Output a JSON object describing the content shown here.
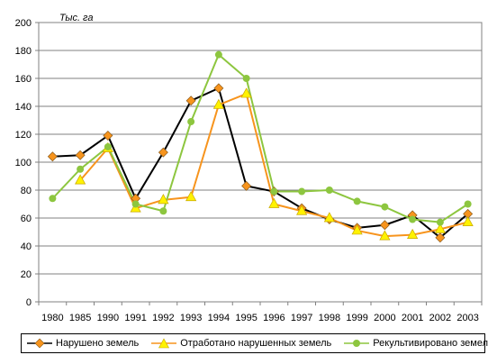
{
  "chart_data": {
    "type": "line",
    "unit_label": "Тыс. га",
    "categories": [
      "1980",
      "1985",
      "1990",
      "1991",
      "1992",
      "1993",
      "1994",
      "1995",
      "1996",
      "1997",
      "1998",
      "1999",
      "2000",
      "2001",
      "2002",
      "2003"
    ],
    "ylim": [
      0,
      200
    ],
    "yticks": [
      "0",
      "20",
      "40",
      "60",
      "80",
      "100",
      "120",
      "140",
      "160",
      "180",
      "200"
    ],
    "legend_position": "bottom",
    "series": [
      {
        "name": "Нарушено земель",
        "color": "#000000",
        "marker": "diamond",
        "marker_color": "#F7941D",
        "values": [
          104,
          105,
          119,
          74,
          107,
          144,
          153,
          83,
          79,
          67,
          59,
          53,
          55,
          62,
          46,
          63
        ]
      },
      {
        "name": "Отработано нарушенных земель",
        "color": "#F7941D",
        "marker": "triangle",
        "marker_color": "#FFF200",
        "values": [
          null,
          87,
          110,
          67,
          73,
          75,
          141,
          149,
          70,
          65,
          60,
          51,
          47,
          48,
          52,
          57
        ]
      },
      {
        "name": "Рекультивировано земель",
        "color": "#8DC63F",
        "marker": "circle",
        "marker_color": "#8DC63F",
        "values": [
          74,
          95,
          111,
          70,
          65,
          129,
          177,
          160,
          79,
          79,
          80,
          72,
          68,
          59,
          57,
          70
        ]
      }
    ]
  }
}
